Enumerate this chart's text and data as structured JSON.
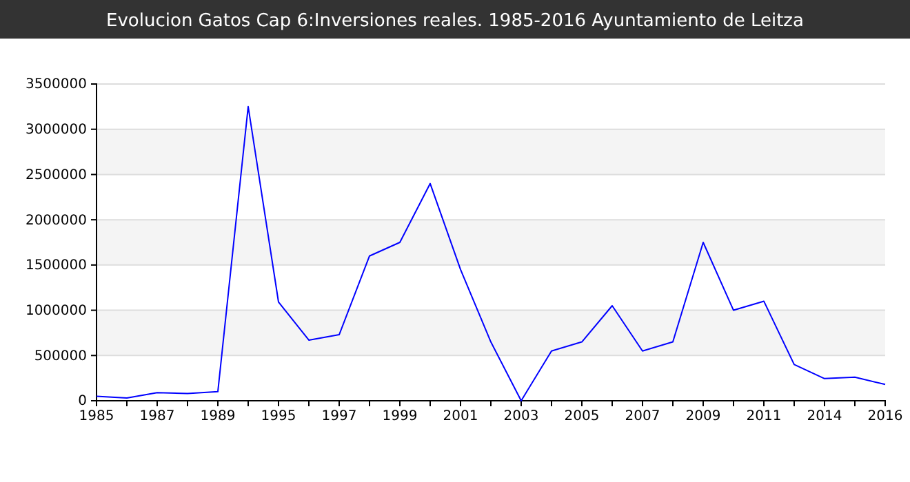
{
  "chart_data": {
    "type": "line",
    "title": "Evolucion Gatos Cap 6:Inversiones reales. 1985-2016 Ayuntamiento de Leitza",
    "categories": [
      "1985",
      null,
      "1987",
      null,
      "1989",
      null,
      "1995",
      null,
      "1997",
      null,
      "1999",
      null,
      "2001",
      null,
      "2003",
      null,
      "2005",
      null,
      "2007",
      null,
      "2009",
      null,
      "2011",
      null,
      "2014",
      null,
      "2016"
    ],
    "series": [
      {
        "color": "#0000ff",
        "values": [
          50000,
          30000,
          90000,
          80000,
          100000,
          3250000,
          1090000,
          670000,
          730000,
          1600000,
          1750000,
          2400000,
          1450000,
          650000,
          0,
          550000,
          650000,
          1050000,
          550000,
          650000,
          1750000,
          1000000,
          1100000,
          400000,
          245000,
          260000,
          180000
        ]
      }
    ],
    "ylim": [
      0,
      3500000
    ],
    "yticks": [
      0,
      500000,
      1000000,
      1500000,
      2000000,
      2500000,
      3000000,
      3500000
    ],
    "grid": "y",
    "line_style": "solid"
  }
}
